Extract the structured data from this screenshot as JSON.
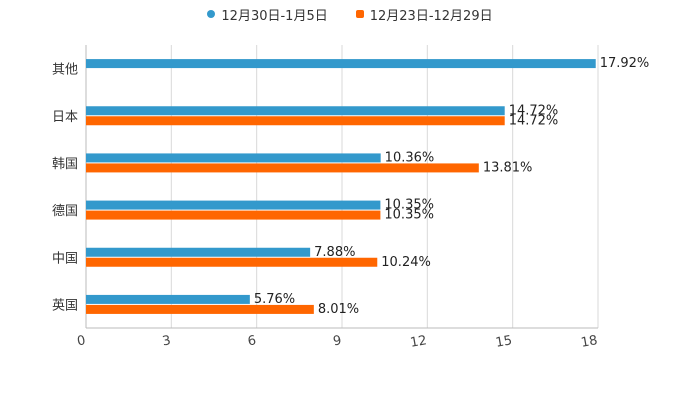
{
  "chart_data": {
    "type": "bar",
    "orientation": "horizontal",
    "categories": [
      "其他",
      "日本",
      "韩国",
      "德国",
      "中国",
      "英国"
    ],
    "series": [
      {
        "name": "12月30日-1月5日",
        "color": "#3399cc",
        "values": [
          17.92,
          14.72,
          10.36,
          10.35,
          7.88,
          5.76
        ],
        "labels": [
          "17.92%",
          "14.72%",
          "10.36%",
          "10.35%",
          "7.88%",
          "5.76%"
        ]
      },
      {
        "name": "12月23日-12月29日",
        "color": "#ff6600",
        "values": [
          null,
          14.72,
          13.81,
          10.35,
          10.24,
          8.01
        ],
        "labels": [
          "",
          "14.72%",
          "13.81%",
          "10.35%",
          "10.24%",
          "8.01%"
        ]
      }
    ],
    "xlim": [
      0,
      18
    ],
    "xticks": [
      "0",
      "3",
      "6",
      "9",
      "12",
      "15",
      "18"
    ],
    "grid": true,
    "legend_position": "top-center",
    "title": "",
    "xlabel": "",
    "ylabel": ""
  }
}
